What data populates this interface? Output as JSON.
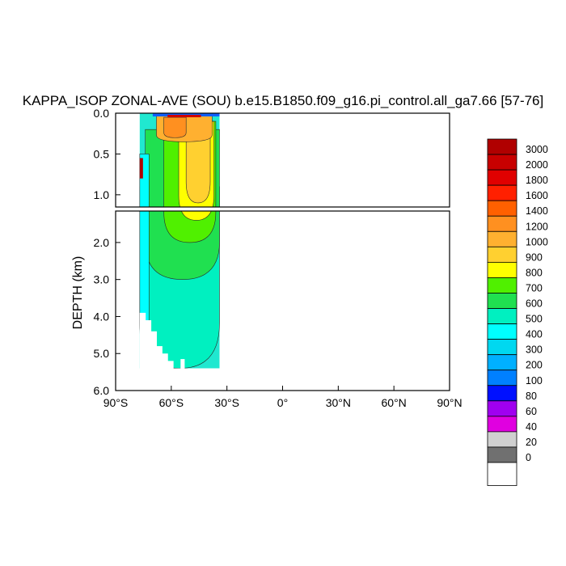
{
  "chart_data": {
    "type": "heatmap",
    "title": "KAPPA_ISOP ZONAL-AVE (SOU) b.e15.B1850.f09_g16.pi_control.all_ga7.66 [57-76]",
    "xlabel": "",
    "ylabel": "DEPTH (km)",
    "x_ticks": [
      "90°S",
      "60°S",
      "30°S",
      "0°",
      "30°N",
      "60°N",
      "90°N"
    ],
    "x_range": [
      -90,
      90
    ],
    "upper_panel": {
      "y_range": [
        0.0,
        1.15
      ],
      "y_ticks": [
        "0.0",
        "0.5",
        "1.0"
      ],
      "y_tick_values": [
        0.0,
        0.5,
        1.0
      ]
    },
    "lower_panel": {
      "y_range": [
        1.15,
        6.0
      ],
      "y_ticks": [
        "2.0",
        "3.0",
        "4.0",
        "5.0",
        "6.0"
      ],
      "y_tick_values": [
        2.0,
        3.0,
        4.0,
        5.0,
        6.0
      ]
    },
    "colorbar": {
      "levels": [
        "3000",
        "2000",
        "1800",
        "1600",
        "1400",
        "1200",
        "1000",
        "900",
        "800",
        "700",
        "600",
        "500",
        "400",
        "300",
        "200",
        "100",
        "80",
        "60",
        "40",
        "20",
        "0"
      ],
      "colors": [
        "#b00000",
        "#c80000",
        "#e00000",
        "#ff2000",
        "#ff6000",
        "#ff9020",
        "#ffb030",
        "#ffd030",
        "#ffff00",
        "#50f000",
        "#20e050",
        "#00f0c0",
        "#00ffff",
        "#00d8f0",
        "#00b0ff",
        "#0080ff",
        "#0010ff",
        "#a000f0",
        "#e000e0",
        "#d0d0d0",
        "#707070",
        "#ffffff"
      ]
    },
    "data_extent": {
      "lat_min": -77,
      "lat_max": -34,
      "depth_max": 5.4
    },
    "regions": [
      {
        "level": "500-600",
        "lat_range": [
          -77,
          -34
        ],
        "depth_range": [
          0.9,
          5.4
        ],
        "color": "#00f0c0"
      },
      {
        "level": "600-700",
        "lat_range": [
          -74,
          -34
        ],
        "depth_range": [
          0.2,
          3.0
        ],
        "color": "#20e050"
      },
      {
        "level": "700-800",
        "lat_range": [
          -64,
          -36
        ],
        "depth_range": [
          0.1,
          2.0
        ],
        "color": "#50f000"
      },
      {
        "level": "800-900",
        "lat_range": [
          -56,
          -37
        ],
        "depth_range": [
          0.1,
          1.4
        ],
        "color": "#ffff00"
      },
      {
        "level": "900-1000",
        "lat_range": [
          -52,
          -39
        ],
        "depth_range": [
          0.05,
          1.1
        ],
        "color": "#ffd030"
      },
      {
        "level": "1000-1200",
        "lat_range": [
          -68,
          -38
        ],
        "depth_range": [
          0.02,
          0.35
        ],
        "color": "#ffb030"
      },
      {
        "level": "1200-1400",
        "lat_range": [
          -64,
          -52
        ],
        "depth_range": [
          0.05,
          0.3
        ],
        "color": "#ff9020"
      },
      {
        "level": "400-500",
        "lat_range": [
          -77,
          -72
        ],
        "depth_range": [
          0.5,
          5.2
        ],
        "color": "#00ffff"
      }
    ]
  }
}
